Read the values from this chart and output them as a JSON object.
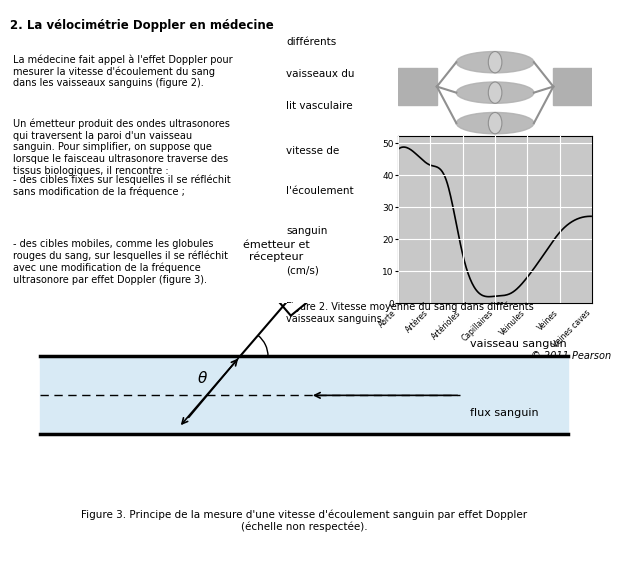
{
  "title": "2. La vélocimétrie Doppler en médecine",
  "left_text": [
    "La médecine fait appel à l'effet Doppler pour\nmesurer la vitesse d'écoulement du sang\ndans les vaisseaux sanguins (figure 2).",
    "Un émetteur produit des ondes ultrasonores\nqui traversent la paroi d'un vaisseau\nsanguin. Pour simplifier, on suppose que\nlorsque le faisceau ultrasonore traverse des\ntissus biologiques, il rencontre :",
    "- des cibles fixes sur lesquelles il se réfléchit\nsans modification de la fréquence ;",
    "- des cibles mobiles, comme les globules\nrouges du sang, sur lesquelles il se réfléchit\navec une modification de la fréquence\nultrasonore par effet Doppler (figure 3)."
  ],
  "graph_ylabel_lines": [
    "vitesse de",
    "l'écoulement",
    "sanguin",
    "(cm/s)"
  ],
  "graph_top_label_lines": [
    "différents",
    "vaisseaux du",
    "lit vasculaire"
  ],
  "graph_x_labels": [
    "Aorte",
    "Artères",
    "Artérioles",
    "Capillaires",
    "Veinules",
    "Veines",
    "Veines caves"
  ],
  "graph_y_ticks": [
    0,
    10,
    20,
    30,
    40,
    50
  ],
  "graph_curve_x": [
    0,
    0.5,
    1.0,
    1.5,
    2.0,
    2.5,
    3.0,
    3.5,
    4.0,
    4.5,
    5.0,
    5.5,
    6.0
  ],
  "graph_curve_y": [
    48,
    47,
    43,
    38,
    15,
    3,
    2,
    3,
    8,
    15,
    22,
    26,
    27
  ],
  "graph_bg_color": "#c8c8c8",
  "graph_grid_color": "#ffffff",
  "figure2_caption": "Figure 2. Vitesse moyenne du sang dans différents\nvaisseaux sanguins.",
  "copyright": "© 2011 Pearson",
  "figure3_caption": "Figure 3. Principe de la mesure d'une vitesse d'écoulement sanguin par effet Doppler\n(échelle non respectée).",
  "vessel_bg_color": "#d8eaf5",
  "vessel_border_color": "#000000",
  "label_emetteur": "émetteur et\nrécepteur",
  "label_vaisseau": "vaisseau sanguin",
  "label_flux": "flux sanguin",
  "label_theta": "θ",
  "bg_color": "#ffffff",
  "text_color": "#000000"
}
